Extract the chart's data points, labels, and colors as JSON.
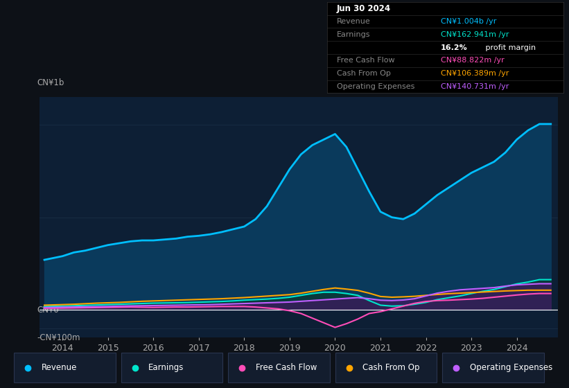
{
  "bg_color": "#0d1117",
  "plot_bg_color": "#0d1f35",
  "grid_color": "#1a2e45",
  "zero_line_color": "#ffffff",
  "revenue_color": "#00bfff",
  "earnings_color": "#00e5cc",
  "fcf_color": "#ff4db8",
  "cashfromop_color": "#ffa500",
  "opex_color": "#bf5fff",
  "revenue_fill": "#0a3a5c",
  "earnings_fill": "#0a3838",
  "opex_fill": "#3d1a5e",
  "ylabel_top": "CN¥1b",
  "ylabel_zero": "CN¥0",
  "ylabel_neg": "-CN¥100m",
  "xlim": [
    2013.5,
    2024.9
  ],
  "ylim": [
    -150,
    1150
  ],
  "xticks": [
    2014,
    2015,
    2016,
    2017,
    2018,
    2019,
    2020,
    2021,
    2022,
    2023,
    2024
  ],
  "years": [
    2013.6,
    2014.0,
    2014.25,
    2014.5,
    2014.75,
    2015.0,
    2015.25,
    2015.5,
    2015.75,
    2016.0,
    2016.25,
    2016.5,
    2016.75,
    2017.0,
    2017.25,
    2017.5,
    2017.75,
    2018.0,
    2018.25,
    2018.5,
    2018.75,
    2019.0,
    2019.25,
    2019.5,
    2019.75,
    2020.0,
    2020.25,
    2020.5,
    2020.75,
    2021.0,
    2021.25,
    2021.5,
    2021.75,
    2022.0,
    2022.25,
    2022.5,
    2022.75,
    2023.0,
    2023.25,
    2023.5,
    2023.75,
    2024.0,
    2024.25,
    2024.5,
    2024.75
  ],
  "revenue": [
    270,
    290,
    310,
    320,
    335,
    350,
    360,
    370,
    375,
    375,
    380,
    385,
    395,
    400,
    408,
    420,
    435,
    450,
    490,
    560,
    660,
    760,
    840,
    890,
    920,
    950,
    880,
    760,
    640,
    530,
    500,
    490,
    520,
    570,
    620,
    660,
    700,
    740,
    770,
    800,
    850,
    920,
    970,
    1004,
    1004
  ],
  "earnings": [
    18,
    20,
    22,
    24,
    26,
    28,
    30,
    32,
    34,
    36,
    37,
    38,
    39,
    41,
    43,
    45,
    48,
    52,
    55,
    58,
    62,
    68,
    78,
    88,
    95,
    95,
    88,
    78,
    50,
    25,
    20,
    22,
    30,
    40,
    55,
    65,
    75,
    88,
    100,
    110,
    125,
    140,
    150,
    163,
    163
  ],
  "fcf": [
    8,
    9,
    10,
    11,
    12,
    13,
    14,
    15,
    14,
    13,
    14,
    15,
    15,
    16,
    17,
    18,
    18,
    18,
    15,
    10,
    5,
    -5,
    -20,
    -45,
    -70,
    -95,
    -75,
    -50,
    -20,
    -10,
    5,
    20,
    35,
    45,
    50,
    52,
    55,
    58,
    62,
    68,
    74,
    80,
    85,
    88,
    88
  ],
  "cashfromop": [
    25,
    28,
    30,
    33,
    36,
    38,
    40,
    43,
    46,
    48,
    50,
    52,
    54,
    56,
    58,
    60,
    63,
    66,
    70,
    74,
    78,
    82,
    90,
    100,
    110,
    118,
    112,
    105,
    90,
    72,
    68,
    70,
    73,
    78,
    83,
    87,
    90,
    93,
    96,
    99,
    102,
    104,
    106,
    106,
    106
  ],
  "opex": [
    12,
    14,
    15,
    16,
    17,
    18,
    20,
    21,
    22,
    23,
    24,
    25,
    26,
    27,
    28,
    30,
    32,
    34,
    36,
    38,
    40,
    42,
    46,
    50,
    54,
    58,
    62,
    66,
    60,
    52,
    50,
    53,
    60,
    75,
    90,
    100,
    108,
    112,
    116,
    120,
    128,
    135,
    138,
    141,
    141
  ],
  "legend_items": [
    {
      "label": "Revenue",
      "color": "#00bfff"
    },
    {
      "label": "Earnings",
      "color": "#00e5cc"
    },
    {
      "label": "Free Cash Flow",
      "color": "#ff4db8"
    },
    {
      "label": "Cash From Op",
      "color": "#ffa500"
    },
    {
      "label": "Operating Expenses",
      "color": "#bf5fff"
    }
  ],
  "info_box": {
    "title": "Jun 30 2024",
    "rows": [
      {
        "label": "Revenue",
        "value": "CN¥1.004b /yr",
        "value_color": "#00bfff"
      },
      {
        "label": "Earnings",
        "value": "CN¥162.941m /yr",
        "value_color": "#00e5cc"
      },
      {
        "label": "",
        "value": "16.2% profit margin",
        "value_color": "#ffffff"
      },
      {
        "label": "Free Cash Flow",
        "value": "CN¥88.822m /yr",
        "value_color": "#ff4db8"
      },
      {
        "label": "Cash From Op",
        "value": "CN¥106.389m /yr",
        "value_color": "#ffa500"
      },
      {
        "label": "Operating Expenses",
        "value": "CN¥140.731m /yr",
        "value_color": "#bf5fff"
      }
    ]
  }
}
